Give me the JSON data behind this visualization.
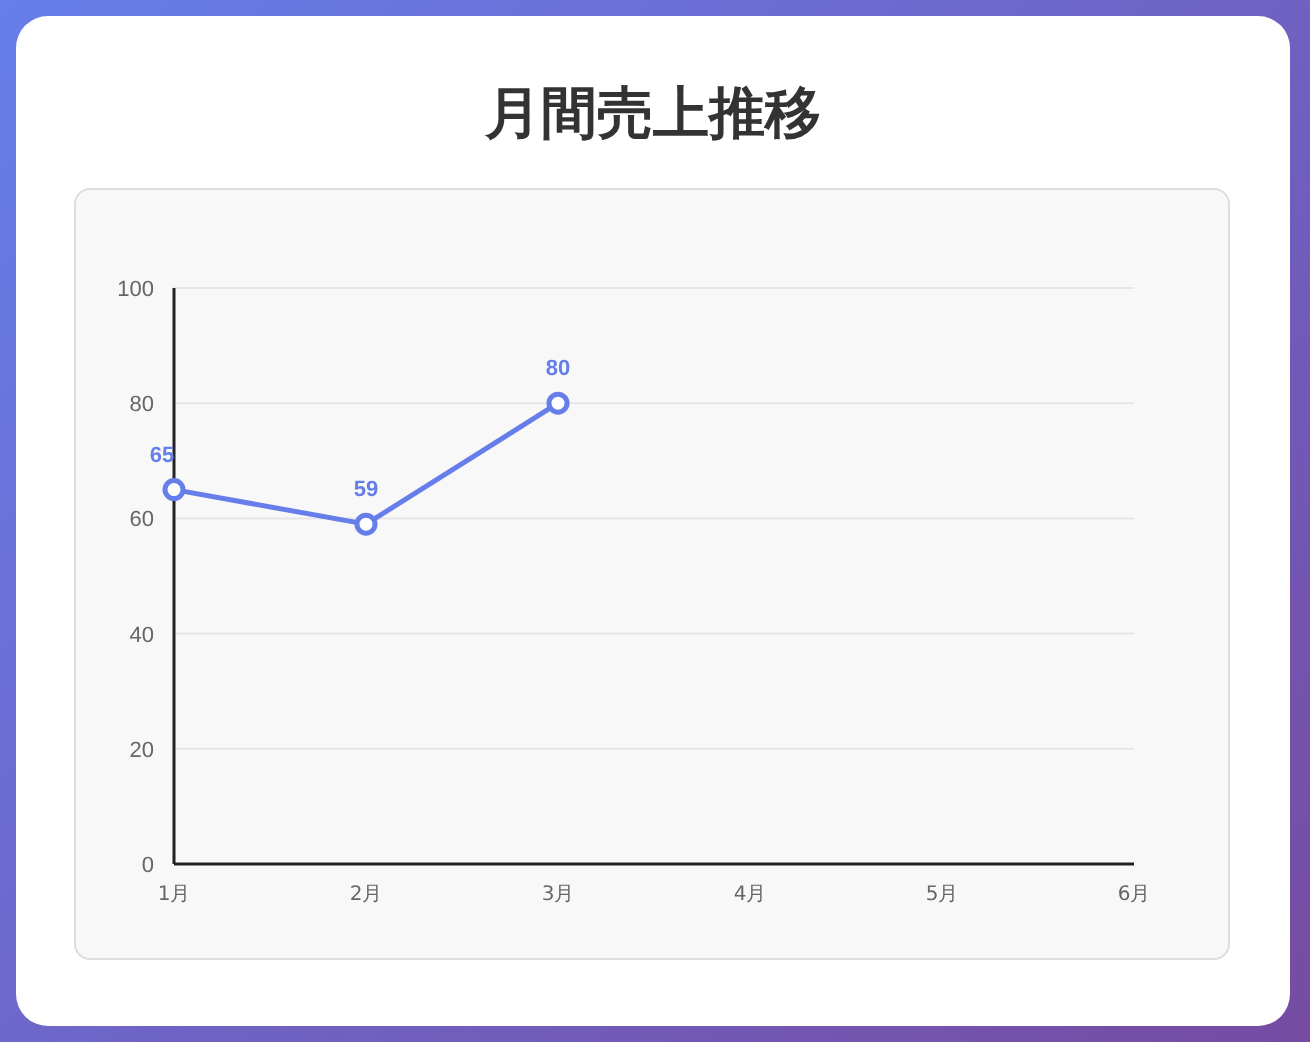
{
  "chart_data": {
    "type": "line",
    "title": "月間売上推移",
    "categories": [
      "1月",
      "2月",
      "3月",
      "4月",
      "5月",
      "6月"
    ],
    "series": [
      {
        "color": "#667eea",
        "values": [
          65,
          59,
          80,
          null,
          null,
          null
        ]
      }
    ],
    "ylim": [
      0,
      100
    ],
    "yticks": [
      0,
      20,
      40,
      60,
      80,
      100
    ],
    "grid": "y",
    "data_labels": true,
    "marker": "circle",
    "line_style": "solid"
  }
}
